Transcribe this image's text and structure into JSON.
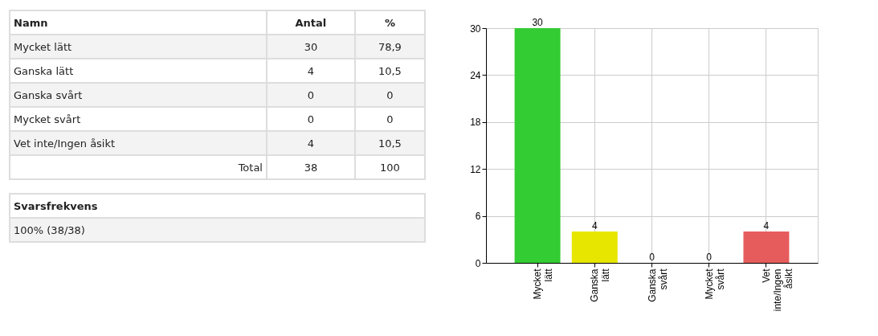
{
  "chart_data": [
    {
      "type": "other",
      "annotations": [
        "Namn",
        "Antal",
        "%",
        "Mycket lätt",
        "30",
        "78,9",
        "Ganska lätt",
        "4",
        "10,5",
        "Ganska svårt",
        "0",
        "0",
        "Mycket svårt",
        "0",
        "0",
        "Vet inte/Ingen åsikt",
        "4",
        "10,5",
        "Total",
        "38",
        "100",
        "Svarsfrekvens",
        "100% (38/38)"
      ]
    },
    {
      "type": "bar",
      "categories": [
        "Mycket lätt",
        "Ganska lätt",
        "Ganska svårt",
        "Mycket svårt",
        "Vet inte/Ingen åsikt"
      ],
      "values": [
        30,
        4,
        0,
        0,
        4
      ],
      "colors": [
        "#33cc33",
        "#e6e600",
        "#3366cc",
        "#ff9900",
        "#e65c5c"
      ],
      "ylim": [
        0,
        30
      ],
      "yticks": [
        0,
        6,
        12,
        18,
        24,
        30
      ],
      "grid": true,
      "data_labels": true
    }
  ]
}
